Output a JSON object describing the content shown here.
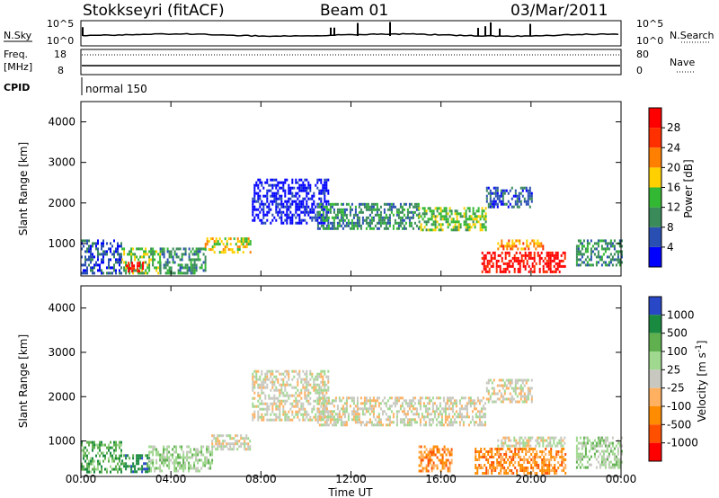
{
  "header": {
    "station": "Stokkseyri (fitACF)",
    "beam": "Beam 01",
    "date": "03/Mar/2011"
  },
  "nsky_panel": {
    "left_label": "N.Sky",
    "left_ticks": [
      "10^5",
      "10^0"
    ],
    "right_label": "N.Search",
    "right_ticks": [
      "10^5",
      "10^0"
    ]
  },
  "freq_panel": {
    "left_label_1": "Freq.",
    "left_label_2": "[MHz]",
    "left_ticks": [
      "18",
      "8"
    ],
    "right_label": "Nave",
    "right_ticks": [
      "80",
      "0"
    ],
    "cpid_label": "CPID",
    "cpid_value": "normal 150"
  },
  "colors": {
    "power_scale": [
      "#0000ff",
      "#2a4fb3",
      "#3a8a5a",
      "#33b833",
      "#ffd000",
      "#ff8000",
      "#ff3000",
      "#ff0000"
    ],
    "velocity_scale": [
      "#2848c8",
      "#1a8a40",
      "#60b050",
      "#a0d890",
      "#c8c8c0",
      "#ffb060",
      "#ff8c00",
      "#ff5000",
      "#ff0000"
    ],
    "ground_scatter": "#c0c0b8"
  },
  "chart_data": [
    {
      "type": "heatmap",
      "name": "power",
      "ylabel": "Slant Range [km]",
      "yticks": [
        "1000",
        "2000",
        "3000",
        "4000"
      ],
      "ylim": [
        200,
        4500
      ],
      "xlim": [
        "00:00",
        "24:00"
      ],
      "xticks": [
        "00:00",
        "04:00",
        "08:00",
        "12:00",
        "16:00",
        "20:00",
        "00:00"
      ],
      "colorbar": {
        "label": "Power [dB]",
        "ticks": [
          "4",
          "8",
          "12",
          "16",
          "20",
          "24",
          "28"
        ],
        "range": [
          0,
          30
        ]
      },
      "echo_regions": [
        {
          "t0": 0.0,
          "t1": 1.8,
          "r0": 300,
          "r1": 1100,
          "level": 1
        },
        {
          "t0": 1.8,
          "t1": 3.5,
          "r0": 300,
          "r1": 900,
          "level": 3
        },
        {
          "t0": 2.0,
          "t1": 2.8,
          "r0": 300,
          "r1": 550,
          "level": 7
        },
        {
          "t0": 3.5,
          "t1": 5.5,
          "r0": 300,
          "r1": 900,
          "level": 2
        },
        {
          "t0": 5.5,
          "t1": 7.5,
          "r0": 800,
          "r1": 1150,
          "level": 4
        },
        {
          "t0": 7.6,
          "t1": 11.0,
          "r0": 1500,
          "r1": 2600,
          "level": 0
        },
        {
          "t0": 10.5,
          "t1": 15.0,
          "r0": 1400,
          "r1": 2000,
          "level": 2
        },
        {
          "t0": 15.0,
          "t1": 18.0,
          "r0": 1350,
          "r1": 1900,
          "level": 3
        },
        {
          "t0": 18.0,
          "t1": 20.0,
          "r0": 1900,
          "r1": 2400,
          "level": 1
        },
        {
          "t0": 17.8,
          "t1": 21.5,
          "r0": 300,
          "r1": 800,
          "level": 7
        },
        {
          "t0": 18.5,
          "t1": 20.5,
          "r0": 900,
          "r1": 1100,
          "level": 5
        },
        {
          "t0": 22.0,
          "t1": 24.0,
          "r0": 500,
          "r1": 1100,
          "level": 2
        }
      ]
    },
    {
      "type": "heatmap",
      "name": "velocity",
      "ylabel": "Slant Range [km]",
      "yticks": [
        "1000",
        "2000",
        "3000",
        "4000"
      ],
      "ylim": [
        200,
        4500
      ],
      "xlim": [
        "00:00",
        "24:00"
      ],
      "xlabel": "Time UT",
      "xticks": [
        "00:00",
        "04:00",
        "08:00",
        "12:00",
        "16:00",
        "20:00",
        "00:00"
      ],
      "colorbar": {
        "label": "Velocity [m s",
        "unit_exp": "-1",
        "unit_close": "]",
        "ticks": [
          "1000",
          "500",
          "100",
          "25",
          "-25",
          "-100",
          "-500",
          "-1000"
        ]
      },
      "echo_regions": [
        {
          "t0": 0.0,
          "t1": 1.8,
          "r0": 300,
          "r1": 1000,
          "level": 2
        },
        {
          "t0": 1.8,
          "t1": 3.0,
          "r0": 300,
          "r1": 700,
          "level": 1
        },
        {
          "t0": 3.0,
          "t1": 5.8,
          "r0": 300,
          "r1": 900,
          "level": 3
        },
        {
          "t0": 5.8,
          "t1": 7.5,
          "r0": 800,
          "r1": 1150,
          "level": 4
        },
        {
          "t0": 7.6,
          "t1": 11.0,
          "r0": 1500,
          "r1": 2600,
          "level": 4
        },
        {
          "t0": 10.5,
          "t1": 18.0,
          "r0": 1350,
          "r1": 2000,
          "level": 4
        },
        {
          "t0": 18.0,
          "t1": 20.0,
          "r0": 1900,
          "r1": 2400,
          "level": 4
        },
        {
          "t0": 15.0,
          "t1": 16.5,
          "r0": 300,
          "r1": 900,
          "level": 6
        },
        {
          "t0": 17.5,
          "t1": 21.5,
          "r0": 300,
          "r1": 850,
          "level": 6
        },
        {
          "t0": 18.5,
          "t1": 21.5,
          "r0": 900,
          "r1": 1100,
          "level": 4
        },
        {
          "t0": 22.0,
          "t1": 24.0,
          "r0": 400,
          "r1": 1100,
          "level": 3
        }
      ]
    }
  ]
}
